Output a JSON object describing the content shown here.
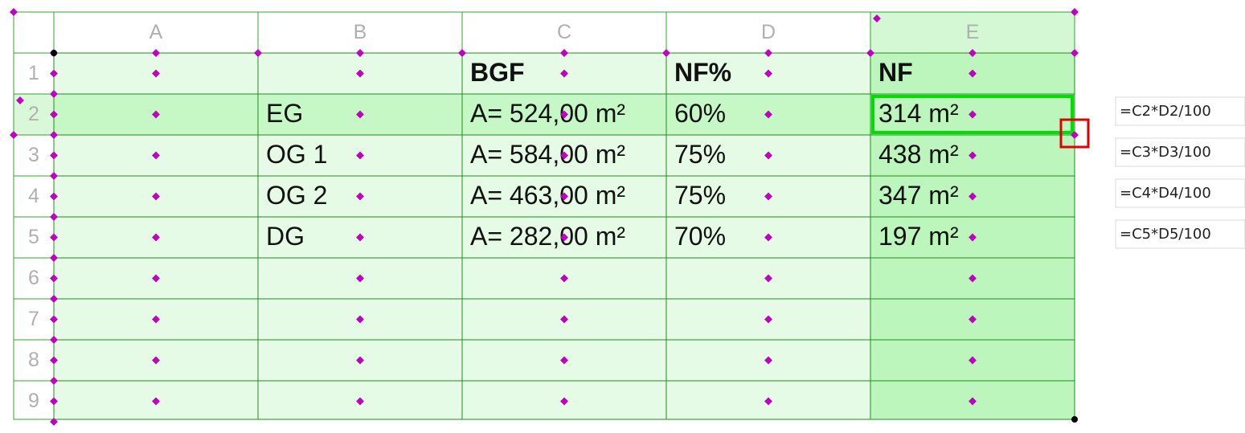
{
  "columns": [
    "A",
    "B",
    "C",
    "D",
    "E"
  ],
  "rows": [
    {
      "label": "1",
      "C": "BGF",
      "D": "NF%",
      "E": "NF"
    },
    {
      "label": "2",
      "B": "EG",
      "C": "A= 524,00 m²",
      "D": "60%",
      "E": "314 m²"
    },
    {
      "label": "3",
      "B": "OG 1",
      "C": "A= 584,00 m²",
      "D": "75%",
      "E": "438 m²"
    },
    {
      "label": "4",
      "B": "OG 2",
      "C": "A= 463,00 m²",
      "D": "75%",
      "E": "347 m²"
    },
    {
      "label": "5",
      "B": "DG",
      "C": "A= 282,00 m²",
      "D": "70%",
      "E": "197 m²"
    },
    {
      "label": "6"
    },
    {
      "label": "7"
    },
    {
      "label": "8"
    },
    {
      "label": "9"
    }
  ],
  "formulas": [
    "=C2*D2/100",
    "=C3*D3/100",
    "=C4*D4/100",
    "=C5*D5/100"
  ]
}
